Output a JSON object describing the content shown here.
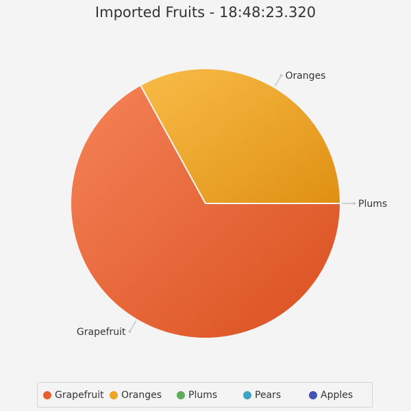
{
  "chart_data": {
    "type": "pie",
    "title": "Imported Fruits - 18:48:23.320",
    "slices": [
      {
        "label": "Grapefruit",
        "value": 67,
        "color": "#e5622e"
      },
      {
        "label": "Oranges",
        "value": 33,
        "color": "#eda323"
      },
      {
        "label": "Plums",
        "value": 0,
        "color": "#5cac5c"
      },
      {
        "label": "Pears",
        "value": 0,
        "color": "#3fa3c3"
      },
      {
        "label": "Apples",
        "value": 0,
        "color": "#4153b3"
      }
    ],
    "legend": {
      "position": "bottom",
      "entries": [
        "Grapefruit",
        "Oranges",
        "Plums",
        "Pears",
        "Apples"
      ]
    }
  }
}
